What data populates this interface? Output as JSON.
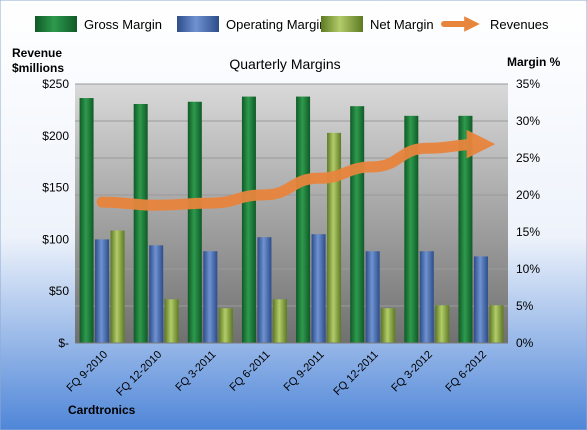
{
  "chart_data": {
    "type": "bar",
    "title": "Quarterly Margins",
    "company": "Cardtronics",
    "ylabel_left_line1": "Revenue",
    "ylabel_left_line2": "$millions",
    "ylabel_right": "Margin %",
    "categories": [
      "FQ 9-2010",
      "FQ 12-2010",
      "FQ 3-2011",
      "FQ 6-2011",
      "FQ 9-2011",
      "FQ 12-2011",
      "FQ 3-2012",
      "FQ 6-2012"
    ],
    "left_axis": {
      "ylim": [
        0,
        250
      ],
      "ticks": [
        0,
        50,
        100,
        150,
        200,
        250
      ],
      "tick_labels": [
        "$-",
        "$50",
        "$100",
        "$150",
        "$200",
        "$250"
      ]
    },
    "right_axis": {
      "ylim": [
        0,
        35
      ],
      "ticks": [
        0,
        5,
        10,
        15,
        20,
        25,
        30,
        35
      ],
      "tick_labels": [
        "0%",
        "5%",
        "10%",
        "15%",
        "20%",
        "25%",
        "30%",
        "35%"
      ]
    },
    "series": [
      {
        "name": "Gross Margin",
        "axis": "right",
        "color": "#1f7a3a",
        "values": [
          33.1,
          32.3,
          32.6,
          33.3,
          33.3,
          32.0,
          30.7,
          30.7
        ]
      },
      {
        "name": "Operating Margin",
        "axis": "right",
        "color": "#4f73b8",
        "values": [
          14.0,
          13.2,
          12.4,
          14.3,
          14.7,
          12.4,
          12.4,
          11.7
        ]
      },
      {
        "name": "Net Margin",
        "axis": "right",
        "color": "#8fa84a",
        "values": [
          15.2,
          5.9,
          4.7,
          5.9,
          28.4,
          4.7,
          5.1,
          5.1
        ]
      },
      {
        "name": "Revenues",
        "axis": "left",
        "color": "#e8853d",
        "values": [
          136,
          133,
          135,
          143,
          159,
          170,
          188,
          192
        ]
      }
    ],
    "legend_position": "top",
    "grid": true
  }
}
